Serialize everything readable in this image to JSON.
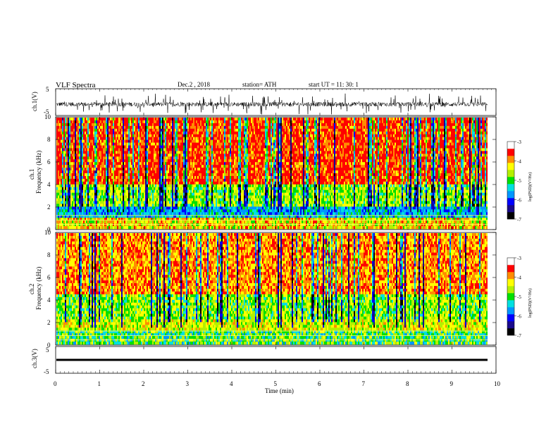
{
  "header": {
    "title": "VLF  Spectra",
    "date": "Dec.2  , 2018",
    "station": "station= ATH",
    "start_ut": "start  UT  =    11: 30: 1"
  },
  "colors": {
    "spectrogram_scale": [
      "#000000",
      "#1a0a8c",
      "#0000ff",
      "#0096ff",
      "#00e0e0",
      "#00e000",
      "#b4f000",
      "#ffff00",
      "#ff8c00",
      "#ff0000",
      "#ffffff"
    ]
  },
  "chart_data": [
    {
      "type": "line",
      "panel": "ch1-waveform",
      "ylabel": "ch.1(V)",
      "ylim": [
        -5,
        5
      ],
      "yticks": [
        "5",
        "-5"
      ],
      "xlim": [
        0,
        10
      ],
      "description_of_signal": "noisy trace centered near -1 V with spikes up to about ±4 V"
    },
    {
      "type": "heatmap",
      "panel": "ch1-spectrogram",
      "ylabel": "ch.1\nFrequency  (kHz)",
      "ylim": [
        0,
        10
      ],
      "yticks": [
        "0",
        "2",
        "4",
        "6",
        "8",
        "10"
      ],
      "xlim": [
        0,
        10
      ],
      "colorbar": {
        "label": "log(PSD) (V²/Hz)",
        "range": [
          -7,
          -3
        ],
        "ticks": [
          "-3",
          "-4",
          "-5",
          "-6",
          "-7"
        ]
      }
    },
    {
      "type": "heatmap",
      "panel": "ch2-spectrogram",
      "ylabel": "ch.2\nFrequency  (kHz)",
      "ylim": [
        0,
        10
      ],
      "yticks": [
        "0",
        "2",
        "4",
        "6",
        "8",
        "10"
      ],
      "xlim": [
        0,
        10
      ],
      "colorbar": {
        "label": "log(PSD) (V²/Hz)",
        "range": [
          -7,
          -3
        ],
        "ticks": [
          "-3",
          "-4",
          "-5",
          "-6",
          "-7"
        ]
      }
    },
    {
      "type": "line",
      "panel": "ch3-waveform",
      "ylabel": "ch.3(V)",
      "ylim": [
        -5,
        5
      ],
      "yticks": [
        "5",
        "-5"
      ],
      "xlim": [
        0,
        10
      ],
      "level": 0
    }
  ],
  "xaxis": {
    "label": "Time  (min)",
    "ticks": [
      "0",
      "1",
      "2",
      "3",
      "4",
      "5",
      "6",
      "7",
      "8",
      "9",
      "10"
    ]
  },
  "colorbar_label": "log(PSD)(V²/Hz)"
}
